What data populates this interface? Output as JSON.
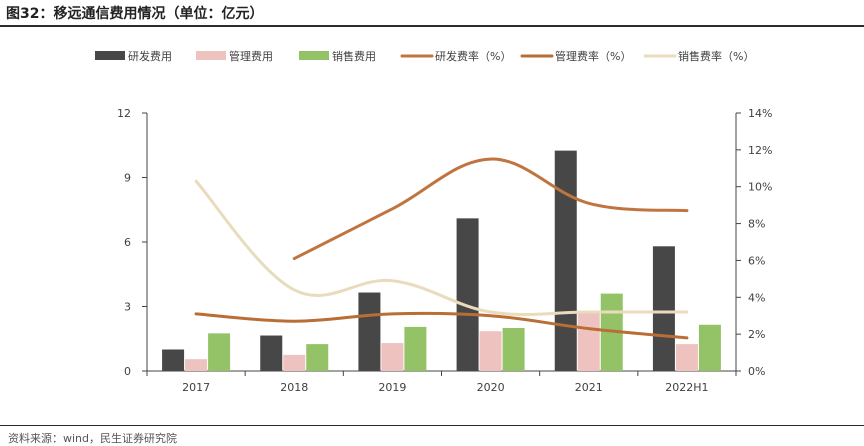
{
  "figure_title": "图32：移远通信费用情况（单位：亿元）",
  "source": "资料来源：wind，民生证券研究院",
  "colors": {
    "rd_bar": "#474747",
    "mgmt_bar": "#edc2bf",
    "sales_bar": "#93c366",
    "rd_rate": "#c0743f",
    "mgmt_rate": "#b96e36",
    "sales_rate": "#e9dcbd",
    "axis": "#444444"
  },
  "chart_data": {
    "type": "bar",
    "categories": [
      "2017",
      "2018",
      "2019",
      "2020",
      "2021",
      "2022H1"
    ],
    "left_axis": {
      "ylim": [
        0,
        12
      ],
      "ticks": [
        "0",
        "3",
        "6",
        "9",
        "12"
      ]
    },
    "right_axis": {
      "ylim": [
        0,
        14
      ],
      "ticks": [
        "0%",
        "2%",
        "4%",
        "6%",
        "8%",
        "10%",
        "12%",
        "14%"
      ]
    },
    "series": [
      {
        "name": "研发费用",
        "kind": "bar",
        "axis": "left",
        "color": "#474747",
        "values": [
          1.0,
          1.65,
          3.65,
          7.1,
          10.25,
          5.8
        ]
      },
      {
        "name": "管理费用",
        "kind": "bar",
        "axis": "left",
        "color": "#edc2bf",
        "values": [
          0.55,
          0.75,
          1.3,
          1.85,
          2.7,
          1.25
        ]
      },
      {
        "name": "销售费用",
        "kind": "bar",
        "axis": "left",
        "color": "#93c366",
        "values": [
          1.75,
          1.25,
          2.05,
          2.0,
          3.6,
          2.15
        ]
      },
      {
        "name": "研发费率（%）",
        "kind": "line",
        "axis": "right",
        "color": "#c0743f",
        "values": [
          null,
          6.1,
          8.8,
          11.5,
          9.1,
          8.7
        ]
      },
      {
        "name": "管理费率（%）",
        "kind": "line",
        "axis": "right",
        "color": "#b96e36",
        "values": [
          3.1,
          2.7,
          3.1,
          3.0,
          2.3,
          1.8
        ]
      },
      {
        "name": "销售费率（%）",
        "kind": "line",
        "axis": "right",
        "color": "#e9dcbd",
        "values": [
          10.3,
          4.4,
          4.9,
          3.2,
          3.2,
          3.2
        ]
      }
    ],
    "legend_position": "top"
  }
}
